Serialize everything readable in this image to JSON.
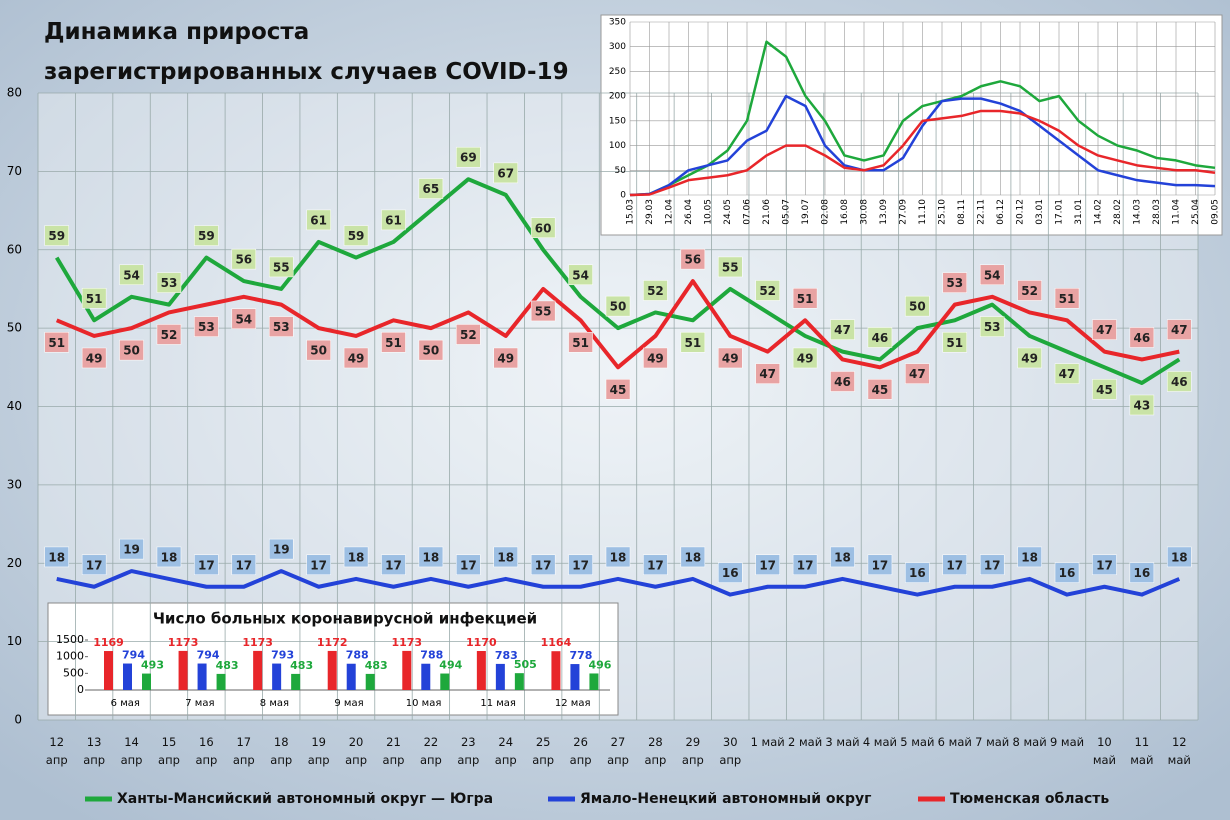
{
  "chart_data": [
    {
      "type": "line",
      "title": "Динамика прироста\nзарегистрированных случаев COVID-19",
      "categories": [
        "12 апр",
        "13 апр",
        "14 апр",
        "15 апр",
        "16 апр",
        "17 апр",
        "18 апр",
        "19 апр",
        "20 апр",
        "21 апр",
        "22 апр",
        "23 апр",
        "24 апр",
        "25 апр",
        "26 апр",
        "27 апр",
        "28 апр",
        "29 апр",
        "30 апр",
        "1 май",
        "2 май",
        "3 май",
        "4 май",
        "5 май",
        "6 май",
        "7 май",
        "8 май",
        "9 май",
        "10 май",
        "11 май",
        "12 май"
      ],
      "series": [
        {
          "name": "Ханты-Мансийский автономный округ — Югра",
          "color": "#1ea83c",
          "label_color": "#c9e3a6",
          "values": [
            59,
            51,
            54,
            53,
            59,
            56,
            55,
            61,
            59,
            61,
            65,
            69,
            67,
            60,
            54,
            50,
            52,
            51,
            55,
            52,
            49,
            47,
            46,
            50,
            51,
            53,
            49,
            47,
            45,
            43,
            46
          ]
        },
        {
          "name": "Ямало-Ненецкий автономный округ",
          "color": "#2342d8",
          "label_color": "#9dbfe3",
          "values": [
            18,
            17,
            19,
            18,
            17,
            17,
            19,
            17,
            18,
            17,
            18,
            17,
            18,
            17,
            17,
            18,
            17,
            18,
            16,
            17,
            17,
            18,
            17,
            16,
            17,
            17,
            18,
            16,
            17,
            16,
            18
          ]
        },
        {
          "name": "Тюменская область",
          "color": "#e8262a",
          "label_color": "#e8a3a3",
          "values": [
            51,
            49,
            50,
            52,
            53,
            54,
            53,
            50,
            49,
            51,
            50,
            52,
            49,
            55,
            51,
            45,
            49,
            56,
            49,
            47,
            51,
            46,
            45,
            47,
            53,
            54,
            52,
            51,
            47,
            46,
            47
          ]
        }
      ],
      "ylim": [
        0,
        80
      ],
      "yticks": [
        0,
        10,
        20,
        30,
        40,
        50,
        60,
        70,
        80
      ],
      "grid": true,
      "legend": "bottom"
    },
    {
      "type": "line",
      "categories": [
        "15.03",
        "29.03",
        "12.04",
        "26.04",
        "10.05",
        "24.05",
        "07.06",
        "21.06",
        "05.07",
        "19.07",
        "02.08",
        "16.08",
        "30.08",
        "13.09",
        "27.09",
        "11.10",
        "25.10",
        "08.11",
        "22.11",
        "06.12",
        "20.12",
        "03.01",
        "17.01",
        "31.01",
        "14.02",
        "28.02",
        "14.03",
        "28.03",
        "11.04",
        "25.04",
        "09.05"
      ],
      "series": [
        {
          "color": "#1ea83c",
          "values": [
            0,
            2,
            20,
            40,
            60,
            90,
            150,
            310,
            280,
            200,
            150,
            80,
            70,
            80,
            150,
            180,
            190,
            200,
            220,
            230,
            220,
            190,
            200,
            150,
            120,
            100,
            90,
            75,
            70,
            60,
            55
          ]
        },
        {
          "color": "#2342d8",
          "values": [
            0,
            2,
            20,
            50,
            60,
            70,
            110,
            130,
            200,
            180,
            100,
            60,
            50,
            50,
            75,
            140,
            190,
            195,
            195,
            185,
            170,
            140,
            110,
            80,
            50,
            40,
            30,
            25,
            20,
            20,
            18
          ]
        },
        {
          "color": "#e8262a",
          "values": [
            0,
            1,
            15,
            30,
            35,
            40,
            50,
            80,
            100,
            100,
            80,
            55,
            50,
            60,
            100,
            150,
            155,
            160,
            170,
            170,
            165,
            150,
            130,
            100,
            80,
            70,
            60,
            55,
            50,
            50,
            45
          ]
        }
      ],
      "ylim": [
        0,
        350
      ],
      "yticks": [
        0,
        50,
        100,
        150,
        200,
        250,
        300,
        350
      ],
      "grid": true
    },
    {
      "type": "bar",
      "title": "Число больных коронавирусной инфекцией",
      "categories": [
        "6 мая",
        "7 мая",
        "8 мая",
        "9 мая",
        "10 мая",
        "11 мая",
        "12 мая"
      ],
      "series": [
        {
          "color": "#e8262a",
          "values": [
            1169,
            1173,
            1173,
            1172,
            1173,
            1170,
            1164
          ]
        },
        {
          "color": "#2342d8",
          "values": [
            794,
            794,
            793,
            788,
            788,
            783,
            778
          ]
        },
        {
          "color": "#1ea83c",
          "values": [
            493,
            483,
            483,
            483,
            494,
            505,
            496
          ]
        }
      ],
      "ylim": [
        0,
        1500
      ],
      "yticks": [
        0,
        500,
        1000,
        1500
      ]
    }
  ]
}
